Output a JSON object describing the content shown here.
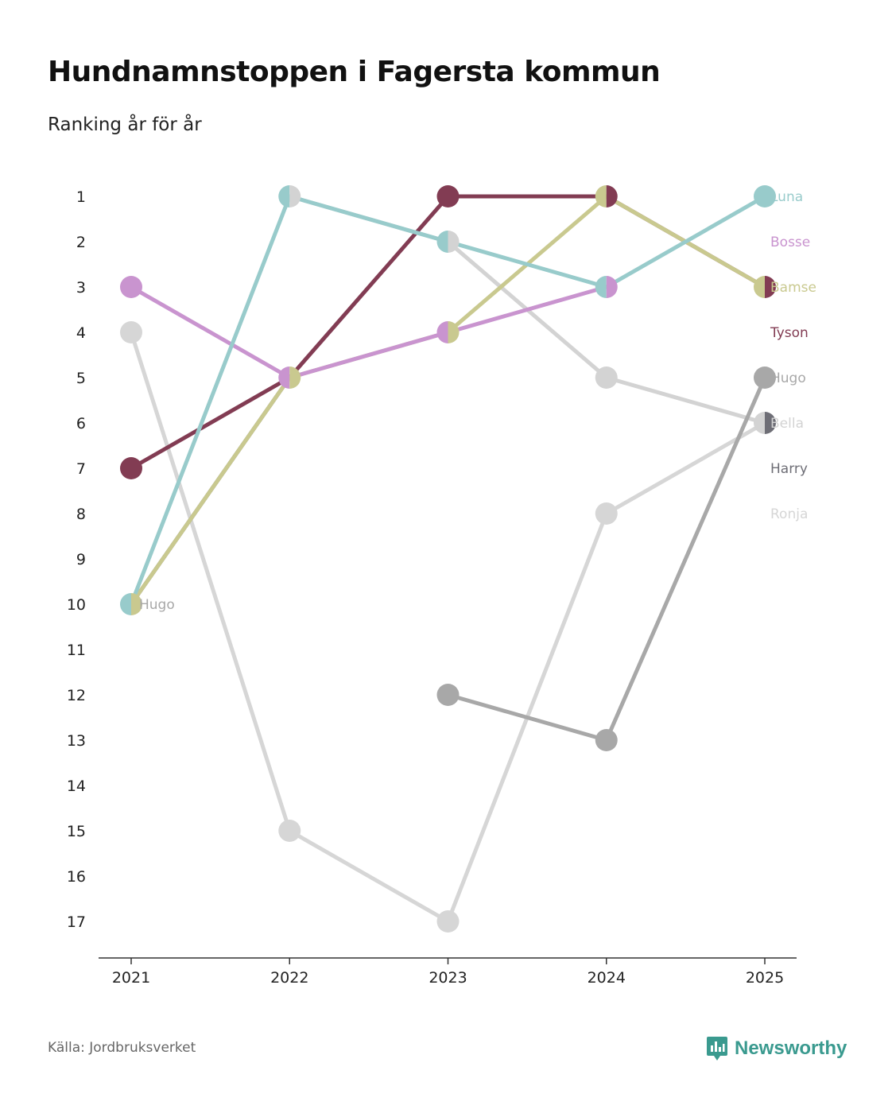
{
  "title": "Hundnamnstoppen i Fagersta kommun",
  "subtitle": "Ranking år för år",
  "source": "Källa: Jordbruksverket",
  "brand": {
    "name": "Newsworthy",
    "icon": "newsworthy-logo-icon",
    "color": "#3a9a8f"
  },
  "chart_data": {
    "type": "line",
    "title": "Hundnamnstoppen i Fagersta kommun",
    "subtitle": "Ranking år för år",
    "xlabel": "",
    "ylabel": "",
    "x": [
      "2021",
      "2022",
      "2023",
      "2024",
      "2025"
    ],
    "ylim": [
      1,
      17
    ],
    "y_ticks": [
      "1",
      "2",
      "3",
      "4",
      "5",
      "6",
      "7",
      "8",
      "9",
      "10",
      "11",
      "12",
      "13",
      "14",
      "15",
      "16",
      "17"
    ],
    "y_inverted": true,
    "series": [
      {
        "name": "Luna",
        "color": "#98cbcb",
        "values": [
          10,
          1,
          2,
          3,
          1
        ]
      },
      {
        "name": "Bosse",
        "color": "#c994cf",
        "values": [
          3,
          5,
          4,
          3,
          null
        ]
      },
      {
        "name": "Bamse",
        "color": "#c9c98f",
        "values": [
          10,
          5,
          4,
          1,
          3
        ]
      },
      {
        "name": "Tyson",
        "color": "#823c53",
        "values": [
          7,
          5,
          1,
          1,
          3
        ]
      },
      {
        "name": "Hugo",
        "color": "#a8a8a8",
        "values": [
          null,
          null,
          12,
          13,
          5
        ]
      },
      {
        "name": "Bella",
        "color": "#d3d3d3",
        "values": [
          null,
          1,
          2,
          5,
          6
        ]
      },
      {
        "name": "Harry",
        "color": "#6e6e76",
        "values": [
          10,
          5,
          null,
          null,
          6
        ]
      },
      {
        "name": "Ronja",
        "color": "#d6d6d6",
        "values": [
          4,
          15,
          17,
          8,
          6
        ]
      }
    ],
    "point_labels": [
      {
        "series": "Hugo",
        "x": "2021",
        "y": 10,
        "text": "Hugo",
        "color": "#a8a8a8"
      }
    ]
  }
}
